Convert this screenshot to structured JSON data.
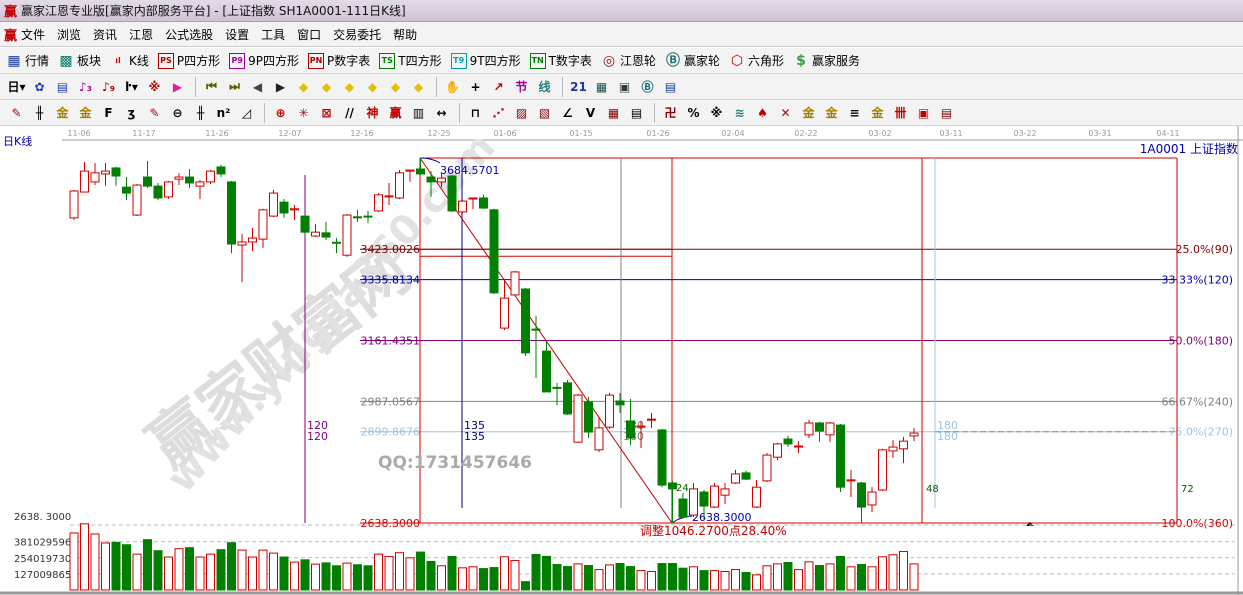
{
  "window": {
    "title": "赢家江恩专业版[赢家内部服务平台] - [上证指数  SH1A0001-111日K线]",
    "logo": "赢"
  },
  "menu": {
    "logo": "赢",
    "items": [
      "文件",
      "浏览",
      "资讯",
      "江恩",
      "公式选股",
      "设置",
      "工具",
      "窗口",
      "交易委托",
      "帮助"
    ]
  },
  "toolbar1": [
    {
      "icon": "quote-table-icon",
      "glyph": "▦",
      "color": "#1a3a9a",
      "label": "行情"
    },
    {
      "icon": "sector-grid-icon",
      "glyph": "▩",
      "color": "#0a7a6a",
      "label": "板块"
    },
    {
      "icon": "candlestick-icon",
      "glyph": "ıl",
      "color": "#d00000",
      "label": "K线"
    },
    {
      "icon": "ps-icon",
      "glyph": "PS",
      "color": "#b00000",
      "label": "P四方形"
    },
    {
      "icon": "p9-icon",
      "glyph": "P9",
      "color": "#a000a0",
      "label": "9P四方形"
    },
    {
      "icon": "pn-icon",
      "glyph": "PN",
      "color": "#b00000",
      "label": "P数字表"
    },
    {
      "icon": "ts-icon",
      "glyph": "TS",
      "color": "#008000",
      "label": "T四方形"
    },
    {
      "icon": "t9-icon",
      "glyph": "T9",
      "color": "#00a0b0",
      "label": "9T四方形"
    },
    {
      "icon": "tn-icon",
      "glyph": "TN",
      "color": "#008000",
      "label": "T数字表"
    },
    {
      "icon": "gann-wheel-icon",
      "glyph": "◎",
      "color": "#8a1010",
      "label": "江恩轮"
    },
    {
      "icon": "winner-wheel-icon",
      "glyph": "Ⓑ",
      "color": "#207070",
      "label": "赢家轮"
    },
    {
      "icon": "hexagon-icon",
      "glyph": "⬡",
      "color": "#c00000",
      "label": "六角形"
    },
    {
      "icon": "dollar-icon",
      "glyph": "$",
      "color": "#3aa040",
      "label": "赢家服务"
    }
  ],
  "toolbar2": [
    {
      "icon": "period-day-dropdown",
      "glyph": "日▾",
      "color": "#000"
    },
    {
      "icon": "chart-pattern-icon",
      "glyph": "✿",
      "color": "#2040c0"
    },
    {
      "icon": "notes-icon",
      "glyph": "▤",
      "color": "#2040c0"
    },
    {
      "icon": "step3-icon",
      "glyph": "♪₃",
      "color": "#a000a0"
    },
    {
      "icon": "step9-icon",
      "glyph": "♪₉",
      "color": "#a00000"
    },
    {
      "icon": "bar-type-dropdown",
      "glyph": "ŀ▾",
      "color": "#000"
    },
    {
      "icon": "pattern-red-icon",
      "glyph": "※",
      "color": "#c00000"
    },
    {
      "icon": "flag-icon",
      "glyph": "▶",
      "color": "#e020a0"
    },
    {
      "icon": "first-icon",
      "glyph": "⏮",
      "color": "#606000"
    },
    {
      "icon": "last-icon",
      "glyph": "⏭",
      "color": "#606000"
    },
    {
      "icon": "prev-icon",
      "glyph": "◀",
      "color": "#444"
    },
    {
      "icon": "next-icon",
      "glyph": "▶",
      "color": "#222"
    },
    {
      "icon": "shift-left-icon",
      "glyph": "◆",
      "color": "#e0c000"
    },
    {
      "icon": "shift-right-icon",
      "glyph": "◆",
      "color": "#e0c000"
    },
    {
      "icon": "expand-h-icon",
      "glyph": "◆",
      "color": "#e0c000"
    },
    {
      "icon": "shrink-icon",
      "glyph": "◆",
      "color": "#e0c000"
    },
    {
      "icon": "expand-v-icon",
      "glyph": "◆",
      "color": "#e0c000"
    },
    {
      "icon": "zoom-all-icon",
      "glyph": "◆",
      "color": "#e0c000"
    },
    {
      "icon": "hand-icon",
      "glyph": "✋",
      "color": "#333"
    },
    {
      "icon": "crosshair-icon",
      "glyph": "+",
      "color": "#000"
    },
    {
      "icon": "line-tool-icon",
      "glyph": "↗",
      "color": "#c00000"
    },
    {
      "icon": "section-icon",
      "glyph": "节",
      "color": "#a000a0"
    },
    {
      "icon": "line-label-icon",
      "glyph": "线",
      "color": "#208080"
    },
    {
      "icon": "calendar-icon",
      "glyph": "21",
      "color": "#1a3a9a"
    },
    {
      "icon": "calculator-icon",
      "glyph": "▦",
      "color": "#1a5050"
    },
    {
      "icon": "history-icon",
      "glyph": "▣",
      "color": "#304030"
    },
    {
      "icon": "big-icon",
      "glyph": "Ⓑ",
      "color": "#207070"
    },
    {
      "icon": "box-icon",
      "glyph": "▤",
      "color": "#1a3a9a"
    }
  ],
  "toolbar3": [
    {
      "icon": "pen-icon",
      "glyph": "✎",
      "color": "#c00000"
    },
    {
      "icon": "parallel-lines-icon",
      "glyph": "╫",
      "color": "#000"
    },
    {
      "icon": "gold-line-icon",
      "glyph": "金",
      "color": "#a08000"
    },
    {
      "icon": "gold-line2-icon",
      "glyph": "金",
      "color": "#a08000"
    },
    {
      "icon": "fib-icon",
      "glyph": "F",
      "color": "#000"
    },
    {
      "icon": "spiral-icon",
      "glyph": "ʒ",
      "color": "#000"
    },
    {
      "icon": "pen2-icon",
      "glyph": "✎",
      "color": "#c00000"
    },
    {
      "icon": "circle-line-icon",
      "glyph": "⊖",
      "color": "#000"
    },
    {
      "icon": "multi-line-icon",
      "glyph": "╫",
      "color": "#000"
    },
    {
      "icon": "n2-icon",
      "glyph": "n²",
      "color": "#000"
    },
    {
      "icon": "triangle-icon",
      "glyph": "◿",
      "color": "#000"
    },
    {
      "icon": "target-icon",
      "glyph": "⊕",
      "color": "#c00000"
    },
    {
      "icon": "radial-icon",
      "glyph": "✳",
      "color": "#c00000"
    },
    {
      "icon": "square-box-icon",
      "glyph": "⊠",
      "color": "#c00000"
    },
    {
      "icon": "slash-icon",
      "glyph": "//",
      "color": "#000"
    },
    {
      "icon": "shen-icon",
      "glyph": "神",
      "color": "#c00000"
    },
    {
      "icon": "ying-icon",
      "glyph": "赢",
      "color": "#c00000"
    },
    {
      "icon": "ruler-icon",
      "glyph": "▥",
      "color": "#000"
    },
    {
      "icon": "width-icon",
      "glyph": "↔",
      "color": "#000"
    },
    {
      "icon": "box-tool-icon",
      "glyph": "⊓",
      "color": "#000"
    },
    {
      "icon": "fan-icon",
      "glyph": "⋰",
      "color": "#c00000"
    },
    {
      "icon": "gann-box-icon",
      "glyph": "▨",
      "color": "#800000"
    },
    {
      "icon": "gann-grid-icon",
      "glyph": "▧",
      "color": "#800000"
    },
    {
      "icon": "angle-icon",
      "glyph": "∠",
      "color": "#000"
    },
    {
      "icon": "v-line-icon",
      "glyph": "V",
      "color": "#000"
    },
    {
      "icon": "grid-icon",
      "glyph": "▦",
      "color": "#800000"
    },
    {
      "icon": "table-icon",
      "glyph": "▤",
      "color": "#000"
    },
    {
      "icon": "period-icon",
      "glyph": "卍",
      "color": "#800000"
    },
    {
      "icon": "percent-icon",
      "glyph": "%",
      "color": "#000"
    },
    {
      "icon": "ratio-icon",
      "glyph": "※",
      "color": "#000"
    },
    {
      "icon": "wave-icon",
      "glyph": "≋",
      "color": "#208080"
    },
    {
      "icon": "tag-icon",
      "glyph": "♠",
      "color": "#c00000"
    },
    {
      "icon": "delete-icon",
      "glyph": "✕",
      "color": "#c00000"
    },
    {
      "icon": "gold-icon",
      "glyph": "金",
      "color": "#a08000"
    },
    {
      "icon": "gold2-icon",
      "glyph": "金",
      "color": "#a08000"
    },
    {
      "icon": "list-icon",
      "glyph": "≡",
      "color": "#000"
    },
    {
      "icon": "gold3-icon",
      "glyph": "金",
      "color": "#a08000"
    },
    {
      "icon": "cross-list-icon",
      "glyph": "卌",
      "color": "#c00000"
    },
    {
      "icon": "red-box-icon",
      "glyph": "▣",
      "color": "#c00000"
    },
    {
      "icon": "end-box-icon",
      "glyph": "▤",
      "color": "#800000"
    }
  ],
  "chart": {
    "period_label": "日K线",
    "symbol_label": "1A0001  上证指数",
    "watermark_cn": "赢家财富网",
    "watermark_url": "www.yingjia360.com",
    "qq": "QQ:1731457646",
    "high_label": "3684.5701",
    "low_label": "2638.3000",
    "left_low_label": "2638.3000",
    "adjust_label": "调整1046.2700点28.40%",
    "dates": [
      "11-06",
      "11-17",
      "11-26",
      "12-07",
      "12-16",
      "12-25",
      "01-06",
      "01-15",
      "01-26",
      "02-04",
      "02-22",
      "03-02",
      "03-11",
      "03-22",
      "03-31",
      "04-11"
    ],
    "volume_axis": [
      "2638. 3000",
      "381029596",
      "254019730",
      "127009865"
    ],
    "time_marks": [
      {
        "label": "120",
        "color": "#800080"
      },
      {
        "label": "135",
        "color": "#000080"
      },
      {
        "label": "180",
        "color": "#808080"
      },
      {
        "label": "180",
        "color": "#a0c4e0"
      },
      {
        "label": "24",
        "color": "#006000"
      },
      {
        "label": "48",
        "color": "#006000"
      },
      {
        "label": "72",
        "color": "#006000"
      }
    ],
    "colors": {
      "up": "#d00000",
      "down": "#007f00",
      "frame": "#d00000"
    }
  },
  "chart_data": {
    "type": "candlestick",
    "ylim": [
      2638.3,
      3684.5701
    ],
    "levels": [
      {
        "price": 3423.0026,
        "price_label": "3423.0026",
        "pct_label": "25.0%(90)",
        "color": "#800000"
      },
      {
        "price": 3335.8134,
        "price_label": "3335.8134",
        "pct_label": "33.33%(120)",
        "color": "#0000a0"
      },
      {
        "price": 3161.4351,
        "price_label": "3161.4351",
        "pct_label": "50.0%(180)",
        "color": "#800080"
      },
      {
        "price": 2987.0567,
        "price_label": "2987.0567",
        "pct_label": "66.67%(240)",
        "color": "#808080"
      },
      {
        "price": 2899.8676,
        "price_label": "2899.8676",
        "pct_label": "75.0%(270)",
        "color": "#a0c4e0"
      },
      {
        "price": 2638.3,
        "price_label": "2638.3000",
        "pct_label": "100.0%(360)",
        "color": "#d00000"
      }
    ],
    "candles": [
      [
        3513,
        3590,
        3593,
        3507
      ],
      [
        3587,
        3647,
        3673,
        3587
      ],
      [
        3616,
        3642,
        3670,
        3607
      ],
      [
        3639,
        3647,
        3670,
        3605
      ],
      [
        3656,
        3633,
        3659,
        3605
      ],
      [
        3601,
        3584,
        3630,
        3564
      ],
      [
        3521,
        3607,
        3610,
        3518
      ],
      [
        3630,
        3604,
        3676,
        3599
      ],
      [
        3604,
        3570,
        3613,
        3564
      ],
      [
        3573,
        3616,
        3619,
        3567
      ],
      [
        3624,
        3630,
        3641,
        3607
      ],
      [
        3630,
        3613,
        3653,
        3599
      ],
      [
        3604,
        3616,
        3622,
        3567
      ],
      [
        3616,
        3647,
        3650,
        3610
      ],
      [
        3659,
        3639,
        3665,
        3630
      ],
      [
        3616,
        3438,
        3619,
        3412
      ],
      [
        3435,
        3444,
        3467,
        3329
      ],
      [
        3444,
        3455,
        3484,
        3418
      ],
      [
        3452,
        3536,
        3539,
        3427
      ],
      [
        3518,
        3584,
        3593,
        3515
      ],
      [
        3558,
        3527,
        3567,
        3513
      ],
      [
        3536,
        3539,
        3550,
        3507
      ],
      [
        3518,
        3472,
        3521,
        3470
      ],
      [
        3461,
        3472,
        3495,
        3458
      ],
      [
        3470,
        3458,
        3501,
        3450
      ],
      [
        3443,
        3441,
        3455,
        3412
      ],
      [
        3406,
        3521,
        3524,
        3401
      ],
      [
        3516,
        3513,
        3536,
        3501
      ],
      [
        3518,
        3516,
        3533,
        3498
      ],
      [
        3533,
        3579,
        3584,
        3530
      ],
      [
        3573,
        3576,
        3613,
        3550
      ],
      [
        3570,
        3642,
        3650,
        3567
      ],
      [
        3647,
        3650,
        3650,
        3616
      ],
      [
        3653,
        3639,
        3684.57,
        3636
      ],
      [
        3630,
        3616,
        3647,
        3573
      ],
      [
        3616,
        3627,
        3644,
        3601
      ],
      [
        3633,
        3533,
        3636,
        3530
      ],
      [
        3530,
        3561,
        3564,
        3527
      ],
      [
        3567,
        3570,
        3570,
        3538
      ],
      [
        3570,
        3541,
        3579,
        3539
      ],
      [
        3536,
        3298,
        3539,
        3295
      ],
      [
        3197,
        3283,
        3335,
        3191
      ],
      [
        3292,
        3358,
        3361,
        3289
      ],
      [
        3309,
        3126,
        3312,
        3117
      ],
      [
        3194,
        3191,
        3232,
        3054
      ],
      [
        3131,
        3014,
        3157,
        3014
      ],
      [
        3027,
        3025,
        3040,
        2976
      ],
      [
        3040,
        2951,
        3048,
        2948
      ],
      [
        2870,
        3005,
        3008,
        2868
      ],
      [
        2985,
        2899,
        2999,
        2882
      ],
      [
        2848,
        2911,
        2939,
        2842
      ],
      [
        2913,
        3005,
        3011,
        2908
      ],
      [
        2988,
        2977,
        3011,
        2954
      ],
      [
        2931,
        2882,
        2994,
        2862
      ],
      [
        2913,
        2916,
        2931,
        2853
      ],
      [
        2934,
        2936,
        2954,
        2911
      ],
      [
        2905,
        2747,
        2908,
        2741
      ],
      [
        2753,
        2736,
        2759,
        2638.3
      ],
      [
        2707,
        2655,
        2724,
        2650
      ],
      [
        2661,
        2736,
        2753,
        2655
      ],
      [
        2727,
        2687,
        2733,
        2647
      ],
      [
        2684,
        2744,
        2753,
        2681
      ],
      [
        2718,
        2736,
        2753,
        2693
      ],
      [
        2753,
        2779,
        2791,
        2750
      ],
      [
        2782,
        2764,
        2788,
        2762
      ],
      [
        2684,
        2741,
        2762,
        2681
      ],
      [
        2759,
        2833,
        2839,
        2756
      ],
      [
        2827,
        2865,
        2868,
        2819
      ],
      [
        2879,
        2865,
        2888,
        2856
      ],
      [
        2856,
        2859,
        2873,
        2839
      ],
      [
        2891,
        2925,
        2934,
        2882
      ],
      [
        2925,
        2902,
        2928,
        2871
      ],
      [
        2891,
        2925,
        2928,
        2871
      ],
      [
        2919,
        2741,
        2922,
        2727
      ],
      [
        2759,
        2762,
        2791,
        2713
      ],
      [
        2753,
        2684,
        2756,
        2638
      ],
      [
        2690,
        2727,
        2741,
        2670
      ],
      [
        2733,
        2848,
        2851,
        2730
      ],
      [
        2845,
        2856,
        2876,
        2825
      ],
      [
        2851,
        2873,
        2885,
        2810
      ],
      [
        2888,
        2896,
        2911,
        2873
      ]
    ],
    "candle_format": [
      "open",
      "close",
      "high",
      "low"
    ],
    "volume_millions": [
      450,
      522,
      442,
      371,
      376,
      357,
      283,
      397,
      310,
      260,
      326,
      334,
      260,
      283,
      318,
      373,
      315,
      260,
      315,
      291,
      260,
      220,
      238,
      204,
      214,
      191,
      212,
      199,
      191,
      283,
      265,
      294,
      254,
      299,
      225,
      191,
      265,
      175,
      183,
      169,
      177,
      262,
      233,
      66,
      280,
      265,
      201,
      185,
      206,
      193,
      161,
      198,
      209,
      185,
      153,
      146,
      209,
      209,
      172,
      183,
      153,
      153,
      146,
      161,
      138,
      119,
      191,
      206,
      217,
      161,
      222,
      193,
      206,
      265,
      183,
      201,
      183,
      262,
      278,
      304,
      206
    ],
    "volume_ticks": [
      127009865,
      254019730,
      381029596
    ]
  }
}
